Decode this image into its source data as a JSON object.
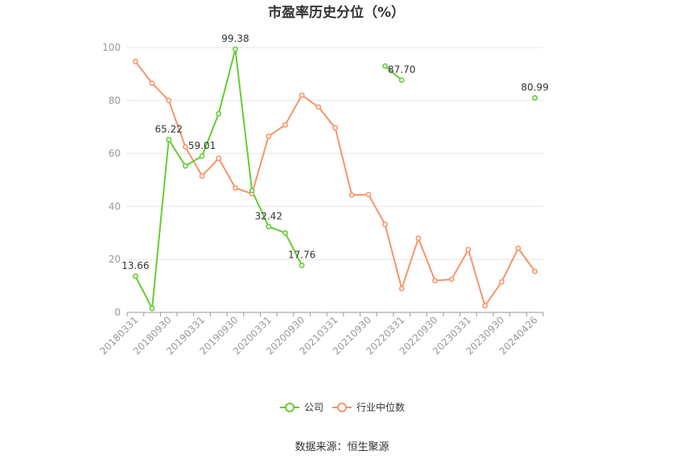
{
  "chart_data": {
    "type": "line",
    "title": "市盈率历史分位（%）",
    "xlabel": "",
    "ylabel": "",
    "ylim": [
      0,
      100
    ],
    "yticks": [
      0,
      20,
      40,
      60,
      80,
      100
    ],
    "grid": true,
    "legend_position": "bottom",
    "x": [
      "20180331",
      "20180630",
      "20180930",
      "20181231",
      "20190331",
      "20190630",
      "20190930",
      "20191231",
      "20200331",
      "20200630",
      "20200930",
      "20201231",
      "20210331",
      "20210630",
      "20210930",
      "20211231",
      "20220331",
      "20220630",
      "20220930",
      "20221231",
      "20230331",
      "20230630",
      "20230930",
      "20231231",
      "20240426"
    ],
    "xtick_labels": [
      "20180331",
      "20180930",
      "20190331",
      "20190930",
      "20200331",
      "20200930",
      "20210331",
      "20210930",
      "20220331",
      "20220930",
      "20230331",
      "20230930",
      "20240426"
    ],
    "series": [
      {
        "name": "公司",
        "color": "#66cc33",
        "values": [
          13.66,
          1.5,
          65.22,
          55.3,
          59.01,
          75.0,
          99.38,
          46.0,
          32.42,
          30.0,
          17.76,
          null,
          null,
          null,
          null,
          93.0,
          87.7,
          null,
          null,
          null,
          null,
          null,
          null,
          null,
          80.99
        ],
        "labels": [
          "13.66",
          null,
          "65.22",
          null,
          "59.01",
          null,
          "99.38",
          null,
          "32.42",
          null,
          "17.76",
          null,
          null,
          null,
          null,
          null,
          "87.70",
          null,
          null,
          null,
          null,
          null,
          null,
          null,
          "80.99"
        ]
      },
      {
        "name": "行业中位数",
        "color": "#f5956a",
        "values": [
          94.7,
          86.5,
          80.0,
          62.5,
          51.5,
          58.2,
          47.0,
          44.8,
          66.5,
          70.8,
          82.0,
          77.5,
          69.7,
          44.3,
          44.5,
          33.2,
          9.0,
          28.0,
          12.0,
          12.5,
          23.7,
          2.5,
          11.5,
          24.2,
          15.5
        ]
      }
    ]
  },
  "source_text": "数据来源：恒生聚源"
}
